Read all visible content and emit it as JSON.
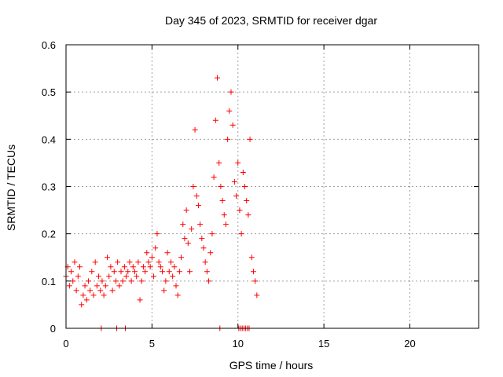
{
  "chart_data": {
    "type": "scatter",
    "title": "Day 345 of 2023, SRMTID for receiver dgar",
    "xlabel": "GPS time / hours",
    "ylabel": "SRMTID / TECUs",
    "xlim": [
      0,
      24
    ],
    "ylim": [
      0,
      0.6
    ],
    "xticks": [
      0,
      5,
      10,
      15,
      20
    ],
    "yticks": [
      0,
      0.1,
      0.2,
      0.3,
      0.4,
      0.5,
      0.6
    ],
    "xtick_labels": [
      "0",
      "5",
      "10",
      "15",
      "20"
    ],
    "ytick_labels": [
      "0",
      "0.1",
      "0.2",
      "0.3",
      "0.4",
      "0.5",
      "0.6"
    ],
    "grid": true,
    "marker": "+",
    "series": [
      {
        "name": "SRMTID",
        "color": "#ff0000",
        "x": [
          0.0,
          0.1,
          0.2,
          0.3,
          0.4,
          0.5,
          0.6,
          0.7,
          0.8,
          0.9,
          1.0,
          1.1,
          1.2,
          1.3,
          1.4,
          1.5,
          1.6,
          1.7,
          1.8,
          1.9,
          2.0,
          2.1,
          2.2,
          2.3,
          2.4,
          2.5,
          2.6,
          2.7,
          2.8,
          2.9,
          3.0,
          3.1,
          3.2,
          3.3,
          3.4,
          3.5,
          3.6,
          3.7,
          3.8,
          3.9,
          4.0,
          4.1,
          4.2,
          4.3,
          4.4,
          4.5,
          4.6,
          4.7,
          4.8,
          4.9,
          5.0,
          5.1,
          5.2,
          5.3,
          5.4,
          5.5,
          5.6,
          5.7,
          5.8,
          5.9,
          6.0,
          6.1,
          6.2,
          6.3,
          6.4,
          6.5,
          6.6,
          6.7,
          6.8,
          6.9,
          7.0,
          7.1,
          7.2,
          7.3,
          7.4,
          7.5,
          7.6,
          7.7,
          7.8,
          7.9,
          8.0,
          8.1,
          8.2,
          8.3,
          8.4,
          8.5,
          8.6,
          8.7,
          8.8,
          8.9,
          9.0,
          9.1,
          9.2,
          9.3,
          9.4,
          9.5,
          9.6,
          9.7,
          9.8,
          9.9,
          10.0,
          10.1,
          10.2,
          10.3,
          10.4,
          10.5,
          10.6,
          10.7,
          10.8,
          10.9,
          11.0,
          11.1,
          2.05,
          2.95,
          3.45,
          8.95,
          10.05,
          10.15,
          10.25,
          10.35,
          10.45,
          10.55,
          10.65
        ],
        "y": [
          0.11,
          0.13,
          0.09,
          0.12,
          0.1,
          0.14,
          0.08,
          0.11,
          0.13,
          0.05,
          0.07,
          0.09,
          0.06,
          0.1,
          0.08,
          0.12,
          0.07,
          0.14,
          0.09,
          0.11,
          0.08,
          0.1,
          0.07,
          0.09,
          0.15,
          0.11,
          0.13,
          0.08,
          0.12,
          0.1,
          0.14,
          0.09,
          0.12,
          0.1,
          0.13,
          0.11,
          0.12,
          0.14,
          0.1,
          0.13,
          0.12,
          0.11,
          0.14,
          0.06,
          0.1,
          0.13,
          0.12,
          0.16,
          0.14,
          0.13,
          0.15,
          0.11,
          0.17,
          0.2,
          0.14,
          0.13,
          0.12,
          0.08,
          0.1,
          0.16,
          0.12,
          0.14,
          0.11,
          0.13,
          0.09,
          0.07,
          0.12,
          0.15,
          0.22,
          0.19,
          0.25,
          0.18,
          0.12,
          0.21,
          0.3,
          0.42,
          0.28,
          0.26,
          0.22,
          0.19,
          0.17,
          0.14,
          0.12,
          0.1,
          0.16,
          0.2,
          0.32,
          0.44,
          0.53,
          0.35,
          0.3,
          0.27,
          0.24,
          0.22,
          0.4,
          0.46,
          0.5,
          0.43,
          0.31,
          0.28,
          0.35,
          0.25,
          0.2,
          0.33,
          0.3,
          0.27,
          0.24,
          0.4,
          0.15,
          0.12,
          0.1,
          0.07,
          0.0,
          0.0,
          0.0,
          0.0,
          0.0,
          0.0,
          0.0,
          0.0,
          0.0,
          0.0,
          0.0
        ]
      }
    ]
  }
}
